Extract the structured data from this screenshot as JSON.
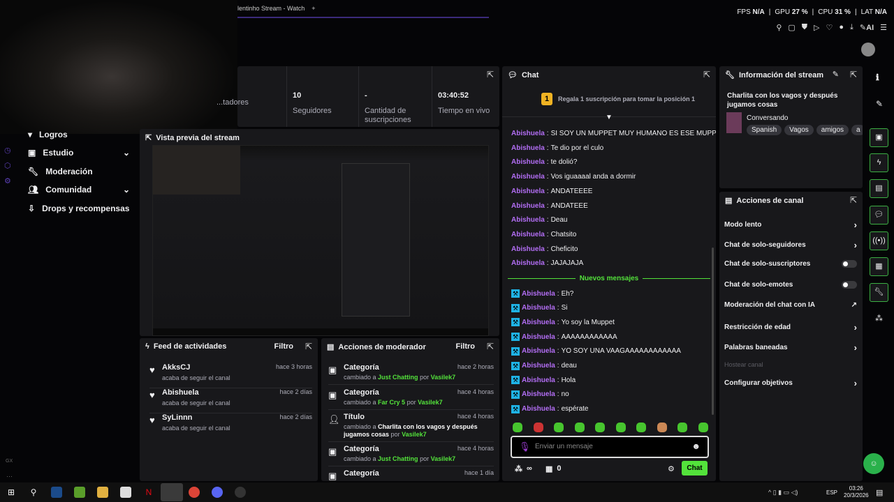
{
  "browser": {
    "tab_title": "lentinho Stream - Watch",
    "new_tab": "+"
  },
  "perf": {
    "fps_label": "FPS",
    "fps": "N/A",
    "gpu_label": "GPU",
    "gpu": "27 %",
    "cpu_label": "CPU",
    "cpu": "31 %",
    "lat_label": "LAT",
    "lat": "N/A"
  },
  "toolbar": {
    "ai": "AI"
  },
  "sidebar": {
    "items": [
      {
        "label": "Logros",
        "icon": "trophy-icon"
      },
      {
        "label": "Estudio",
        "icon": "studio-icon",
        "chevron": true
      },
      {
        "label": "Moderación",
        "icon": "wrench-icon"
      },
      {
        "label": "Comunidad",
        "icon": "community-icon",
        "chevron": true
      },
      {
        "label": "Drops y recompensas",
        "icon": "drops-icon"
      }
    ],
    "brand": "GX"
  },
  "stats": [
    {
      "value": "",
      "label": "...tadores"
    },
    {
      "value": "10",
      "label": "Seguidores"
    },
    {
      "value": "-",
      "label": "Cantidad de suscripciones"
    },
    {
      "value": "03:40:52",
      "label": "Tiempo en vivo"
    }
  ],
  "preview": {
    "title": "Vista previa del stream"
  },
  "chat": {
    "title": "Chat",
    "leaderboard": "Regala 1 suscripción para tomar la posición 1",
    "rank": "1",
    "old_messages": [
      {
        "user": "Abishuela",
        "text": "SI SOY UN MUPPET MUY HUMANO ES ESE MUPPEEET"
      },
      {
        "user": "Abishuela",
        "text": "Te dio por el culo"
      },
      {
        "user": "Abishuela",
        "text": "te dolió?"
      },
      {
        "user": "Abishuela",
        "text": "Vos iguaaaal anda a dormir"
      },
      {
        "user": "Abishuela",
        "text": "ANDATEEEE"
      },
      {
        "user": "Abishuela",
        "text": "ANDATEEE"
      },
      {
        "user": "Abishuela",
        "text": "Deau"
      },
      {
        "user": "Abishuela",
        "text": "Chatsito"
      },
      {
        "user": "Abishuela",
        "text": "Cheficito"
      },
      {
        "user": "Abishuela",
        "text": "JAJAJAJA"
      }
    ],
    "new_divider": "Nuevos mensajes",
    "new_messages": [
      {
        "user": "Abishuela",
        "text": "Eh?"
      },
      {
        "user": "Abishuela",
        "text": "Si"
      },
      {
        "user": "Abishuela",
        "text": "Yo soy la Muppet"
      },
      {
        "user": "Abishuela",
        "text": "AAAAAAAAAAAA"
      },
      {
        "user": "Abishuela",
        "text": "YO SOY UNA VAAGAAAAAAAAAAAA"
      },
      {
        "user": "Abishuela",
        "text": "deau"
      },
      {
        "user": "Abishuela",
        "text": "Hola"
      },
      {
        "user": "Abishuela",
        "text": "no"
      },
      {
        "user": "Abishuela",
        "text": "espérate"
      }
    ],
    "input_placeholder": "Enviar un mensaje",
    "points": "∞",
    "store_count": "0",
    "send": "Chat"
  },
  "info": {
    "title": "Información del stream",
    "stream_title": "Charlita con los vagos y después jugamos cosas",
    "category": "Conversando",
    "tags": [
      "Spanish",
      "Vagos",
      "amigos",
      "a"
    ]
  },
  "channel_actions": {
    "title": "Acciones de canal",
    "items": [
      {
        "label": "Modo lento",
        "control": "chevron"
      },
      {
        "label": "Chat de solo-seguidores",
        "control": "chevron"
      },
      {
        "label": "Chat de solo-suscriptores",
        "control": "toggle",
        "on": false
      },
      {
        "label": "Chat de solo-emotes",
        "control": "toggle",
        "on": false
      },
      {
        "label": "Moderación del chat con IA",
        "control": "external"
      },
      {
        "label": "Restricción de edad",
        "control": "chevron"
      },
      {
        "label": "Palabras baneadas",
        "control": "chevron"
      },
      {
        "label": "Hostear canal",
        "control": "disabled"
      },
      {
        "label": "Configurar objetivos",
        "control": "chevron"
      }
    ]
  },
  "feed": {
    "title": "Feed de actividades",
    "filter": "Filtro",
    "items": [
      {
        "user": "AkksCJ",
        "text": "acaba de seguir el canal",
        "time": "hace 3 horas"
      },
      {
        "user": "Abishuela",
        "text": "acaba de seguir el canal",
        "time": "hace 2 días"
      },
      {
        "user": "SyLinnn",
        "text": "acaba de seguir el canal",
        "time": "hace 2 días"
      }
    ]
  },
  "mod_actions": {
    "title": "Acciones de moderador",
    "filter": "Filtro",
    "changed": "cambiado a",
    "by": "por",
    "items": [
      {
        "type": "Categoría",
        "value": "Just Chatting",
        "mod": "Vasilek7",
        "time": "hace 2 horas"
      },
      {
        "type": "Categoría",
        "value": "Far Cry 5",
        "mod": "Vasilek7",
        "time": "hace 4 horas"
      },
      {
        "type": "Título",
        "value": "Charlita con los vagos y después jugamos cosas",
        "mod": "Vasilek7",
        "time": "hace 4 horas"
      },
      {
        "type": "Categoría",
        "value": "Just Chatting",
        "mod": "Vasilek7",
        "time": "hace 4 horas"
      },
      {
        "type": "Categoría",
        "value": "",
        "mod": "",
        "time": "hace 1 día"
      }
    ]
  },
  "taskbar": {
    "lang": "ESP",
    "time": "03:26",
    "date": "20/3/2026"
  },
  "colors": {
    "accent_green": "#53e23b",
    "username_purple": "#b36ef5",
    "panel": "#18181b",
    "mod_badge": "#1fb3e6"
  }
}
